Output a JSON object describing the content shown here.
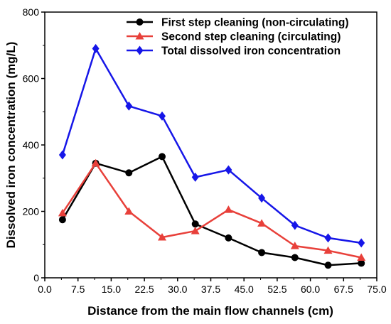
{
  "chart_data": {
    "type": "line",
    "xlabel": "Distance from the main flow channels (cm)",
    "ylabel": "Dissolved iron concentration (mg/L)",
    "xlim": [
      0,
      75
    ],
    "ylim": [
      0,
      800
    ],
    "xticks": [
      "0.0",
      "7.5",
      "15.0",
      "22.5",
      "30.0",
      "37.5",
      "45.0",
      "52.5",
      "60.0",
      "67.5",
      "75.0"
    ],
    "yticks": [
      "0",
      "200",
      "400",
      "600",
      "800"
    ],
    "grid": false,
    "legend_position": "top-right",
    "x": [
      4,
      11.5,
      19,
      26.5,
      34,
      41.5,
      49,
      56.5,
      64,
      71.5
    ],
    "series": [
      {
        "name": "First step cleaning (non-circulating)",
        "color": "#000000",
        "marker": "circle",
        "values": [
          175,
          345,
          316,
          365,
          162,
          120,
          76,
          61,
          38,
          44
        ]
      },
      {
        "name": "Second step cleaning (circulating)",
        "color": "#e8403a",
        "marker": "triangle",
        "values": [
          195,
          345,
          200,
          122,
          141,
          205,
          164,
          96,
          82,
          61
        ]
      },
      {
        "name": "Total dissolved iron concentration",
        "color": "#1616e8",
        "marker": "diamond",
        "values": [
          370,
          690,
          517,
          487,
          303,
          325,
          240,
          158,
          120,
          105
        ]
      }
    ]
  }
}
